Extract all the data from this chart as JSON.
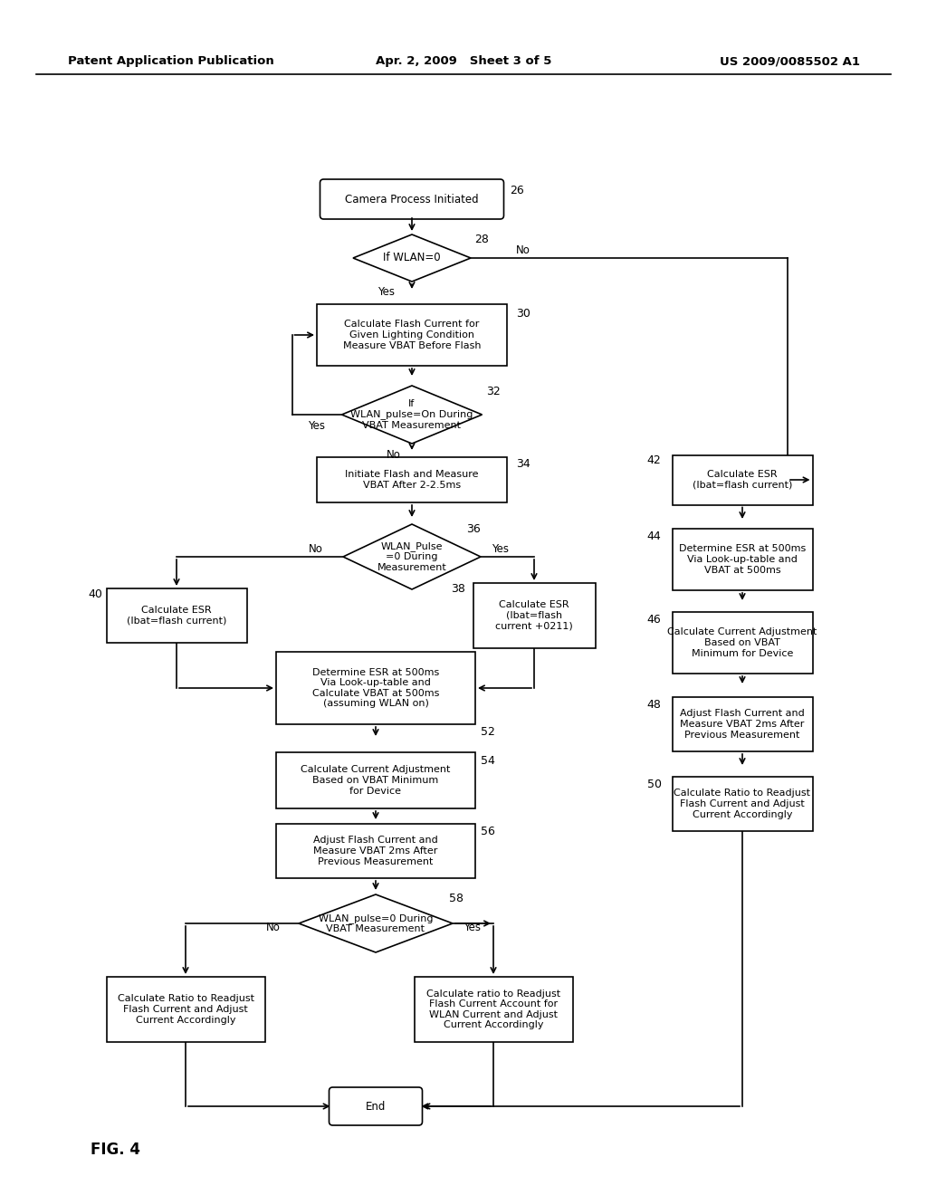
{
  "title_left": "Patent Application Publication",
  "title_center": "Apr. 2, 2009   Sheet 3 of 5",
  "title_right": "US 2009/0085502 A1",
  "fig_label": "FIG. 4",
  "background": "#ffffff"
}
